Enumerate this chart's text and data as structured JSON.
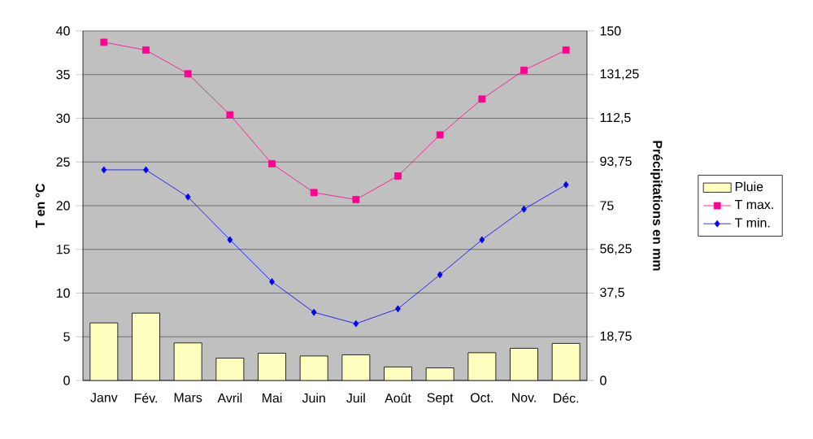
{
  "chart_data": {
    "type": "bar",
    "categories": [
      "Janv",
      "Fév.",
      "Mars",
      "Avril",
      "Mai",
      "Juin",
      "Juil",
      "Août",
      "Sept",
      "Oct.",
      "Nov.",
      "Déc."
    ],
    "series": [
      {
        "name": "Pluie",
        "axis": "y2",
        "color": "#ffffc0",
        "values": [
          24.7,
          28.9,
          16.1,
          9.6,
          11.7,
          10.5,
          11.0,
          5.8,
          5.4,
          11.9,
          13.8,
          15.9
        ]
      },
      {
        "name": "T max.",
        "type": "line",
        "marker": "square",
        "color": "#ff0090",
        "values": [
          38.7,
          37.8,
          35.1,
          30.4,
          24.8,
          21.5,
          20.7,
          23.4,
          28.1,
          32.2,
          35.5,
          37.8
        ]
      },
      {
        "name": "T min.",
        "type": "line",
        "marker": "diamond",
        "color": "#0000ff",
        "values": [
          24.1,
          24.1,
          21.0,
          16.1,
          11.3,
          7.8,
          6.5,
          8.2,
          12.1,
          16.1,
          19.6,
          22.4
        ]
      }
    ],
    "ylabel": "T en °C",
    "y2label": "Précipitations en mm",
    "ylim": [
      0,
      40
    ],
    "yticks": [
      0,
      5,
      10,
      15,
      20,
      25,
      30,
      35,
      40
    ],
    "y2lim": [
      0,
      150
    ],
    "y2ticks": [
      0,
      {
        "value": 18.75,
        "label": "18,75"
      },
      {
        "value": 37.5,
        "label": "37,5"
      },
      {
        "value": 56.25,
        "label": "56,25"
      },
      75,
      {
        "value": 93.75,
        "label": "93,75"
      },
      {
        "value": 112.5,
        "label": "112,5"
      },
      {
        "value": 131.25,
        "label": "131,25"
      },
      150
    ],
    "grid": "y",
    "legend": "right"
  }
}
